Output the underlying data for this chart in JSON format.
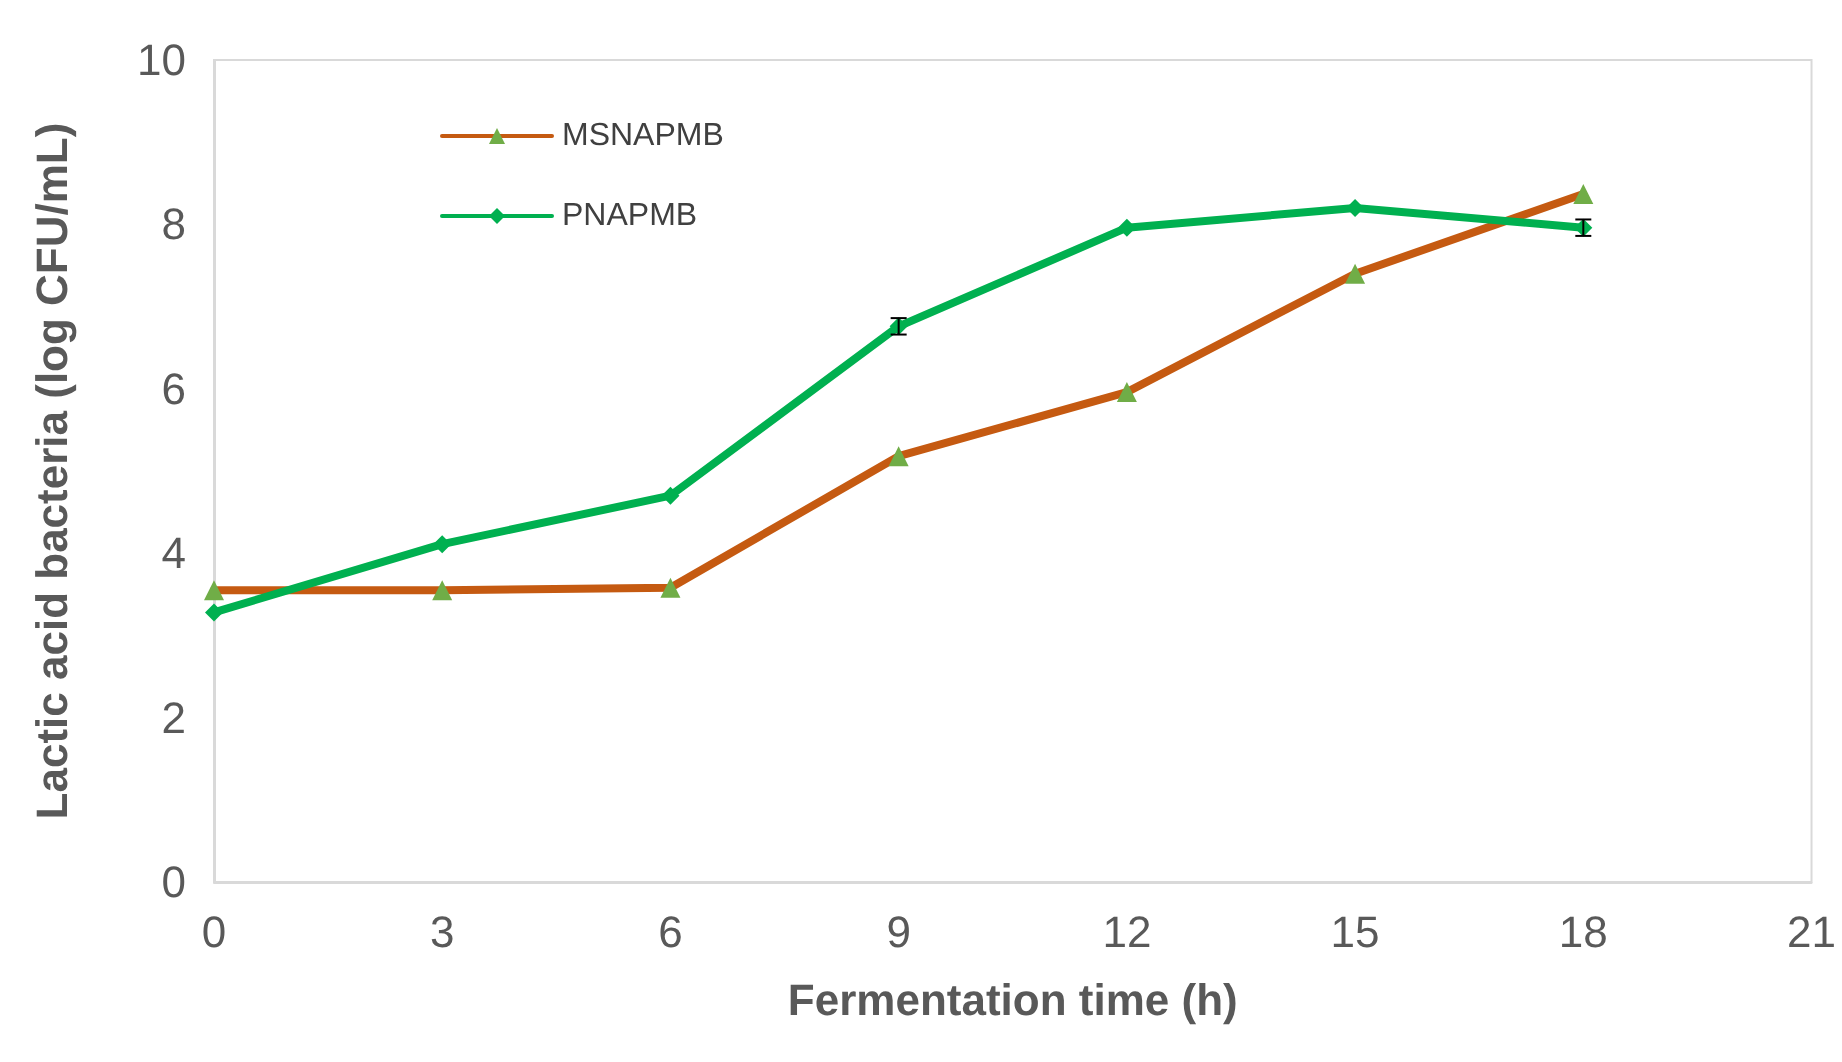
{
  "chart_data": {
    "type": "line",
    "xlabel": "Fermentation time (h)",
    "ylabel": "Lactic acid bacteria (log CFU/mL)",
    "x": [
      0,
      3,
      6,
      9,
      12,
      15,
      18
    ],
    "xlim": [
      0,
      21
    ],
    "xticks": [
      0,
      3,
      6,
      9,
      12,
      15,
      18,
      21
    ],
    "ylim": [
      0,
      10
    ],
    "yticks": [
      0,
      2,
      4,
      6,
      8,
      10
    ],
    "legend": "top left",
    "line_style": "solid",
    "series": [
      {
        "name": "MSNAPMB",
        "color": "#c55a11",
        "marker": "triangle",
        "colors": [
          "#70ad47",
          "#70ad47",
          "#70ad47",
          "#70ad47",
          "#70ad47",
          "#70ad47",
          "#70ad47"
        ],
        "values": [
          3.55,
          3.55,
          3.58,
          5.18,
          5.96,
          7.4,
          8.37
        ]
      },
      {
        "name": "PNAPMB",
        "color": "#00b050",
        "marker": "diamond",
        "values": [
          3.28,
          4.11,
          4.7,
          6.76,
          7.96,
          8.2,
          7.96
        ],
        "errors": [
          null,
          null,
          null,
          0.1,
          null,
          null,
          0.1
        ]
      }
    ]
  }
}
